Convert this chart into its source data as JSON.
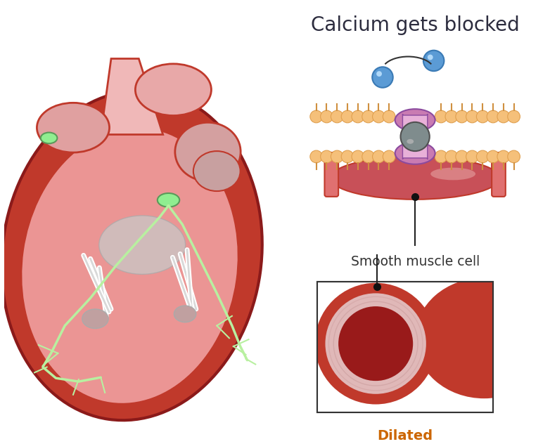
{
  "title": "Calcium gets blocked",
  "label_smooth": "Smooth muscle cell",
  "label_dilated": "Dilated",
  "bg_color": "#ffffff",
  "title_color": "#2c2c3e",
  "label_color": "#333333",
  "dilated_color": "#cc6600",
  "heart_outer": "#c0392b",
  "heart_inner": "#f0a0a0",
  "heart_dark": "#8b1a1a",
  "membrane_color": "#f5c07a",
  "channel_purple": "#c97bb2",
  "blocker_gray": "#7f8c8d",
  "calcium_blue": "#5b9bd5",
  "artery_red": "#c0392b",
  "green_conduction": "#b8f0a0"
}
